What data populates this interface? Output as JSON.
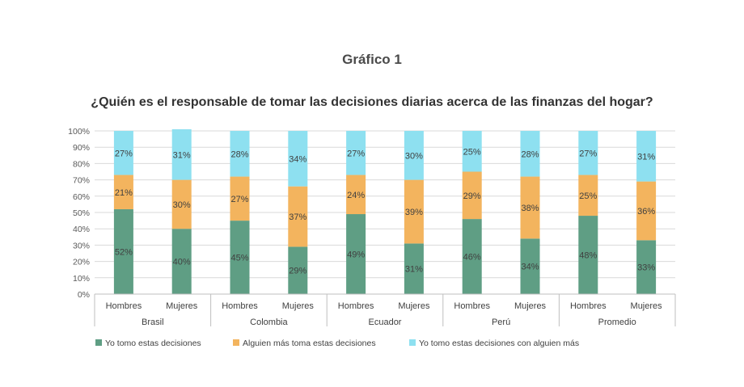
{
  "chart_data": {
    "type": "bar",
    "stacked": true,
    "percent": true,
    "title": "Gráfico 1",
    "subtitle": "¿Quién es el responsable de tomar las decisiones diarias acerca de las finanzas del hogar?",
    "groups": [
      "Brasil",
      "Colombia",
      "Ecuador",
      "Perú",
      "Promedio"
    ],
    "categories": [
      "Hombres",
      "Mujeres",
      "Hombres",
      "Mujeres",
      "Hombres",
      "Mujeres",
      "Hombres",
      "Mujeres",
      "Hombres",
      "Mujeres"
    ],
    "ylim": [
      0,
      100
    ],
    "y_ticks": [
      "0%",
      "10%",
      "20%",
      "30%",
      "40%",
      "50%",
      "60%",
      "70%",
      "80%",
      "90%",
      "100%"
    ],
    "grid": true,
    "legend_position": "bottom-left",
    "series": [
      {
        "name": "Yo tomo estas decisiones",
        "color": "#5f9e84",
        "values": [
          52,
          40,
          45,
          29,
          49,
          31,
          46,
          34,
          48,
          33
        ],
        "labels": [
          "52%",
          "40%",
          "45%",
          "29%",
          "49%",
          "31%",
          "46%",
          "34%",
          "48%",
          "33%"
        ]
      },
      {
        "name": "Alguien más toma estas decisiones",
        "color": "#f3b45e",
        "values": [
          21,
          30,
          27,
          37,
          24,
          39,
          29,
          38,
          25,
          36
        ],
        "labels": [
          "21%",
          "30%",
          "27%",
          "37%",
          "24%",
          "39%",
          "29%",
          "38%",
          "25%",
          "36%"
        ]
      },
      {
        "name": "Yo tomo estas decisiones con alguien más",
        "color": "#8ee0f0",
        "values": [
          27,
          31,
          28,
          34,
          27,
          30,
          25,
          28,
          27,
          31
        ],
        "labels": [
          "27%",
          "31%",
          "28%",
          "34%",
          "27%",
          "30%",
          "25%",
          "28%",
          "27%",
          "31%"
        ]
      }
    ]
  }
}
